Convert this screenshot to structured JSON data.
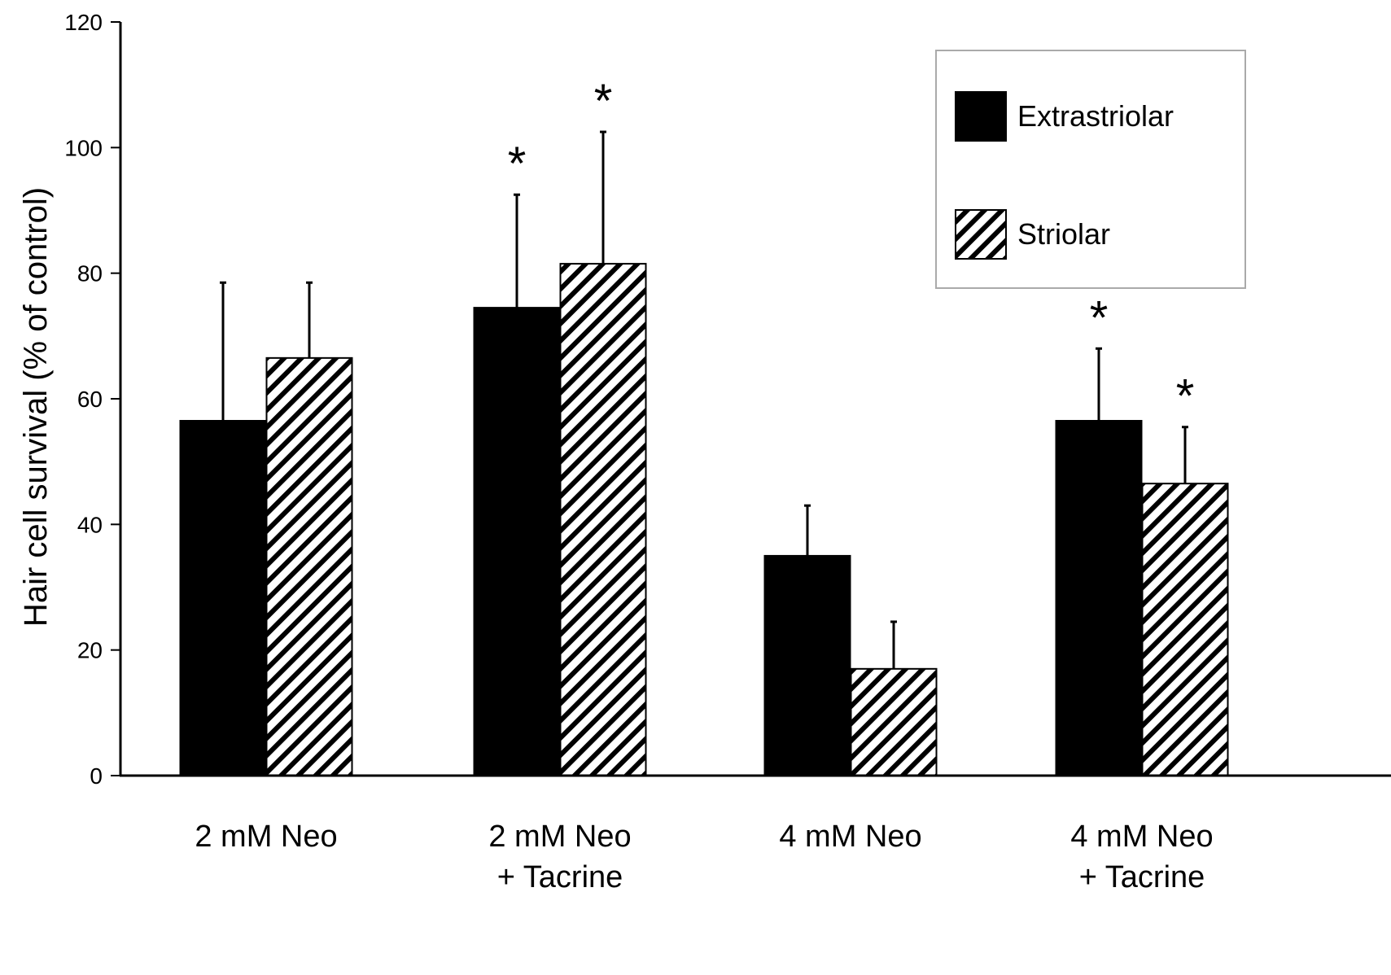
{
  "chart_data": {
    "type": "bar",
    "title": "",
    "xlabel": "",
    "ylabel": "Hair cell survival (% of control)",
    "ylim": [
      0,
      120
    ],
    "yticks": [
      0,
      20,
      40,
      60,
      80,
      100,
      120
    ],
    "grid": false,
    "legend_position": "top-right",
    "categories": [
      [
        "2 mM Neo"
      ],
      [
        "2 mM Neo",
        "+ Tacrine"
      ],
      [
        "4 mM Neo"
      ],
      [
        "4 mM Neo",
        "+ Tacrine"
      ]
    ],
    "series": [
      {
        "name": "Extrastriolar",
        "fill": "solid",
        "color": "#000000",
        "values": [
          56.5,
          74.5,
          35,
          56.5
        ],
        "error": [
          22,
          18,
          8,
          11.5
        ],
        "significant": [
          false,
          true,
          false,
          true
        ]
      },
      {
        "name": "Striolar",
        "fill": "hatched",
        "color": "#000000",
        "values": [
          66.5,
          81.5,
          17,
          46.5
        ],
        "error": [
          12,
          21,
          7.5,
          9
        ],
        "significant": [
          false,
          true,
          false,
          true
        ]
      }
    ],
    "significance_marker": "*"
  }
}
